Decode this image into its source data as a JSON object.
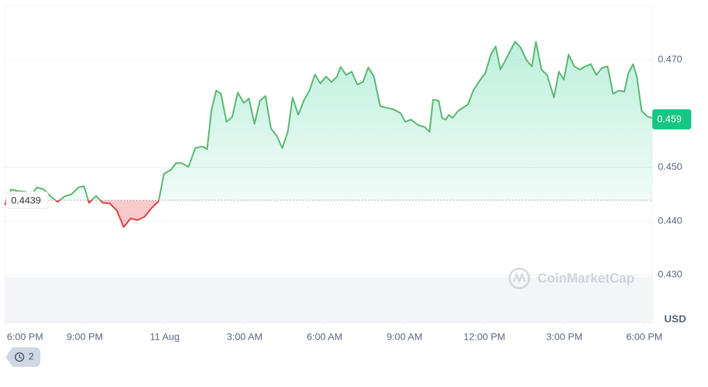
{
  "chart_data": {
    "type": "line",
    "x": [
      0,
      0.23,
      0.5,
      0.76,
      1.02,
      1.2,
      1.46,
      1.72,
      1.98,
      2.24,
      2.5,
      2.77,
      2.97,
      3.16,
      3.42,
      3.68,
      3.94,
      4.2,
      4.46,
      4.72,
      4.98,
      5.24,
      5.5,
      5.77,
      5.97,
      6.24,
      6.42,
      6.63,
      6.89,
      7.15,
      7.41,
      7.59,
      7.75,
      7.93,
      8.11,
      8.32,
      8.53,
      8.74,
      8.97,
      9.16,
      9.37,
      9.57,
      9.78,
      9.99,
      10.2,
      10.41,
      10.62,
      10.8,
      11.01,
      11.22,
      11.43,
      11.64,
      11.84,
      12.05,
      12.26,
      12.47,
      12.6,
      12.81,
      13.02,
      13.23,
      13.44,
      13.64,
      13.85,
      14.09,
      14.32,
      14.58,
      14.85,
      15.03,
      15.24,
      15.5,
      15.76,
      15.94,
      16.07,
      16.28,
      16.41,
      16.54,
      16.67,
      16.8,
      17.01,
      17.19,
      17.38,
      17.58,
      17.84,
      18.03,
      18.24,
      18.42,
      18.6,
      18.76,
      18.94,
      19.15,
      19.36,
      19.57,
      19.78,
      19.93,
      20.14,
      20.35,
      20.61,
      20.79,
      20.98,
      21.16,
      21.37,
      21.58,
      21.78,
      21.99,
      22.2,
      22.41,
      22.62,
      22.83,
      23.04,
      23.25,
      23.4,
      23.58,
      23.72,
      23.9,
      24.11,
      24.29
    ],
    "values": [
      0.443,
      0.4459,
      0.4456,
      0.4455,
      0.445,
      0.4463,
      0.4459,
      0.4446,
      0.4436,
      0.4446,
      0.445,
      0.4463,
      0.4465,
      0.4434,
      0.4447,
      0.4434,
      0.4433,
      0.442,
      0.4389,
      0.4405,
      0.4402,
      0.4408,
      0.4424,
      0.4437,
      0.4488,
      0.4496,
      0.4508,
      0.4508,
      0.4501,
      0.4536,
      0.4539,
      0.4534,
      0.4605,
      0.4643,
      0.4637,
      0.4585,
      0.4594,
      0.4639,
      0.462,
      0.4628,
      0.4581,
      0.4624,
      0.4633,
      0.4572,
      0.4559,
      0.4536,
      0.4566,
      0.463,
      0.4598,
      0.4624,
      0.4643,
      0.4673,
      0.4656,
      0.4669,
      0.4659,
      0.4669,
      0.4687,
      0.4672,
      0.4678,
      0.4654,
      0.4659,
      0.4686,
      0.4669,
      0.4614,
      0.4611,
      0.4608,
      0.4601,
      0.4585,
      0.4589,
      0.4579,
      0.4575,
      0.4566,
      0.4626,
      0.4624,
      0.4592,
      0.4589,
      0.4598,
      0.4592,
      0.4605,
      0.4611,
      0.4617,
      0.4643,
      0.4663,
      0.4675,
      0.471,
      0.4725,
      0.4682,
      0.4697,
      0.4714,
      0.4734,
      0.4723,
      0.47,
      0.4688,
      0.4734,
      0.4682,
      0.4672,
      0.463,
      0.4678,
      0.4663,
      0.471,
      0.4688,
      0.4682,
      0.4688,
      0.4692,
      0.4672,
      0.4685,
      0.4688,
      0.4637,
      0.4643,
      0.4641,
      0.4675,
      0.4692,
      0.4669,
      0.4605,
      0.4595,
      0.4592
    ],
    "baseline": 0.4439,
    "last_price": 0.459,
    "up_color": "#16c784",
    "line_up_color": "#5ab870",
    "down_color": "#d9473f",
    "xlim": [
      0,
      24.3
    ],
    "ylim": [
      0.4212,
      0.4801
    ],
    "xticks": [
      {
        "value": 0,
        "label": "6:00 PM"
      },
      {
        "value": 3,
        "label": "9:00 PM"
      },
      {
        "value": 6,
        "label": "11 Aug"
      },
      {
        "value": 9,
        "label": "3:00 AM"
      },
      {
        "value": 12,
        "label": "6:00 AM"
      },
      {
        "value": 15,
        "label": "9:00 AM"
      },
      {
        "value": 18,
        "label": "12:00 PM"
      },
      {
        "value": 21,
        "label": "3:00 PM"
      },
      {
        "value": 24,
        "label": "6:00 PM"
      }
    ],
    "yticks": [
      {
        "value": 0.43,
        "label": "0.430"
      },
      {
        "value": 0.44,
        "label": "0.440"
      },
      {
        "value": 0.45,
        "label": "0.450"
      },
      {
        "value": 0.47,
        "label": "0.470"
      }
    ],
    "y_axis_label": "USD",
    "watermark": "CoinMarketCap",
    "grid": true
  },
  "history_button": {
    "count": "2"
  }
}
